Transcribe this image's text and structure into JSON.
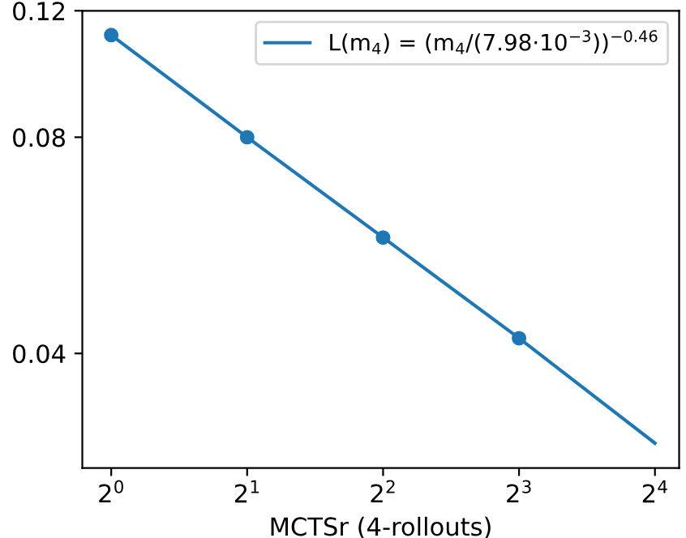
{
  "chart_data": {
    "type": "line",
    "xlabel": "MCTSr (4-rollouts)",
    "log": "xy",
    "xlim": [
      0.863,
      18.1
    ],
    "ylim": [
      0.0277,
      0.12
    ],
    "xticks": [
      {
        "value": 1,
        "label": "2$^{0}$"
      },
      {
        "value": 2,
        "label": "2$^{1}$"
      },
      {
        "value": 4,
        "label": "2$^{2}$"
      },
      {
        "value": 8,
        "label": "2$^{3}$"
      },
      {
        "value": 16,
        "label": "2$^{4}$"
      }
    ],
    "yticks": [
      0.04,
      0.08,
      0.12
    ],
    "series": [
      {
        "type": "line",
        "name": "L(m$_{4}$) = (m$_{4}$/(7.98·10$^{−3}$))$^{−0.46}$",
        "color": "#1f77b4",
        "x": [
          1,
          2,
          4,
          8,
          16
        ],
        "values": [
          0.111,
          0.08,
          0.058,
          0.042,
          0.03
        ],
        "marker": "none"
      },
      {
        "type": "scatter",
        "color": "#1f77b4",
        "x": [
          1,
          2,
          4,
          8
        ],
        "values": [
          0.111,
          0.08,
          0.058,
          0.042
        ],
        "marker": "circle"
      }
    ],
    "legend": "top right",
    "grid": false
  }
}
